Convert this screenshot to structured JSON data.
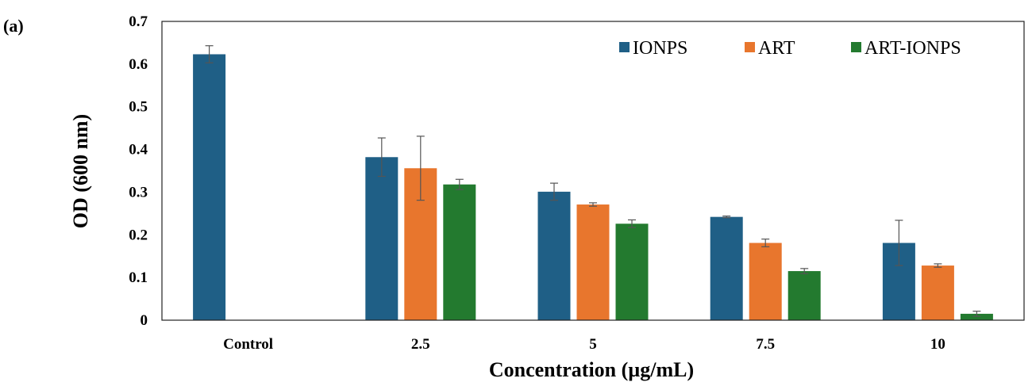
{
  "panel_label": "(a)",
  "chart_data": {
    "type": "bar",
    "categories": [
      "Control",
      "2.5",
      "5",
      "7.5",
      "10"
    ],
    "series": [
      {
        "name": "IONPS",
        "color": "#1f5f86",
        "values": [
          0.623,
          0.382,
          0.301,
          0.242,
          0.181
        ],
        "errors": [
          0.02,
          0.045,
          0.02,
          0.002,
          0.053
        ]
      },
      {
        "name": "ART",
        "color": "#e8762d",
        "values": [
          null,
          0.356,
          0.271,
          0.181,
          0.128
        ],
        "errors": [
          null,
          0.075,
          0.004,
          0.009,
          0.004
        ]
      },
      {
        "name": "ART-IONPS",
        "color": "#237a2f",
        "values": [
          null,
          0.318,
          0.226,
          0.115,
          0.015
        ],
        "errors": [
          null,
          0.012,
          0.009,
          0.006,
          0.006
        ]
      }
    ],
    "xlabel": "Concentration (µg/mL)",
    "ylabel": "OD (600 nm)",
    "ylim": [
      0,
      0.7
    ],
    "yticks": [
      "0",
      "0.1",
      "0.2",
      "0.3",
      "0.4",
      "0.5",
      "0.6",
      "0.7"
    ],
    "grid": false,
    "legend_position": "top-right"
  }
}
